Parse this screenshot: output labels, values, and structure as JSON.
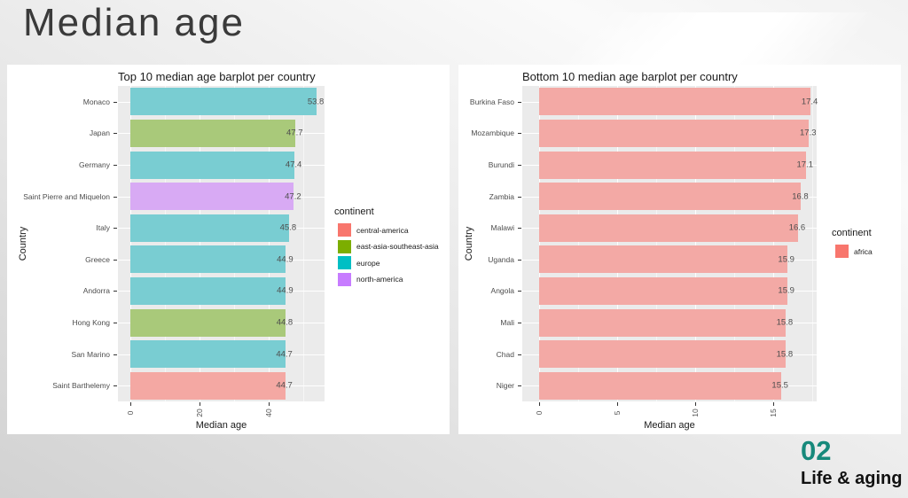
{
  "page_title": "Median age",
  "footer": {
    "number": "02",
    "label": "Life & aging"
  },
  "colors": {
    "accent_teal": "#17897b",
    "panel_bg": "#ebebeb",
    "grid_major": "#ffffff",
    "axis_text": "#4d4d4d",
    "card_bg": "#ffffff"
  },
  "continent_fill": {
    "central-america": {
      "bar": "#f4a8a3",
      "key": "#f8766d"
    },
    "east-asia-southeast-asia": {
      "bar": "#a9c97a",
      "key": "#7cae00"
    },
    "europe": {
      "bar": "#79cdd2",
      "key": "#00bfc4"
    },
    "north-america": {
      "bar": "#d8aaf4",
      "key": "#c77cff"
    },
    "africa": {
      "bar": "#f3a9a5",
      "key": "#f8766d"
    }
  },
  "chart_data": [
    {
      "type": "bar",
      "orientation": "horizontal",
      "title": "Top 10 median age barplot per country",
      "xlabel": "Median age",
      "ylabel": "Country",
      "categories": [
        "Monaco",
        "Japan",
        "Germany",
        "Saint Pierre and Miquelon",
        "Italy",
        "Greece",
        "Andorra",
        "Hong Kong",
        "San Marino",
        "Saint Barthelemy"
      ],
      "values": [
        53.8,
        47.7,
        47.4,
        47.2,
        45.8,
        44.9,
        44.9,
        44.8,
        44.7,
        44.7
      ],
      "groups": [
        "europe",
        "east-asia-southeast-asia",
        "europe",
        "north-america",
        "europe",
        "europe",
        "europe",
        "east-asia-southeast-asia",
        "europe",
        "central-america"
      ],
      "xlim": [
        -3.6,
        56.1
      ],
      "xticks": [
        0,
        20,
        40
      ],
      "minor_ticks": [
        10,
        30,
        50
      ],
      "grid": true,
      "legend": {
        "title": "continent",
        "position": "right",
        "items": [
          "central-america",
          "east-asia-southeast-asia",
          "europe",
          "north-america"
        ]
      }
    },
    {
      "type": "bar",
      "orientation": "horizontal",
      "title": "Bottom 10 median age barplot per country",
      "xlabel": "Median age",
      "ylabel": "Country",
      "categories": [
        "Burkina Faso",
        "Mozambique",
        "Burundi",
        "Zambia",
        "Malawi",
        "Uganda",
        "Angola",
        "Mali",
        "Chad",
        "Niger"
      ],
      "values": [
        17.4,
        17.3,
        17.1,
        16.8,
        16.6,
        15.9,
        15.9,
        15.8,
        15.8,
        15.5
      ],
      "groups": [
        "africa",
        "africa",
        "africa",
        "africa",
        "africa",
        "africa",
        "africa",
        "africa",
        "africa",
        "africa"
      ],
      "xlim": [
        -1.08,
        17.8
      ],
      "xticks": [
        0,
        5,
        10,
        15
      ],
      "minor_ticks": [
        2.5,
        7.5,
        12.5,
        17.5
      ],
      "grid": true,
      "legend": {
        "title": "continent",
        "position": "right",
        "items": [
          "africa"
        ]
      }
    }
  ]
}
